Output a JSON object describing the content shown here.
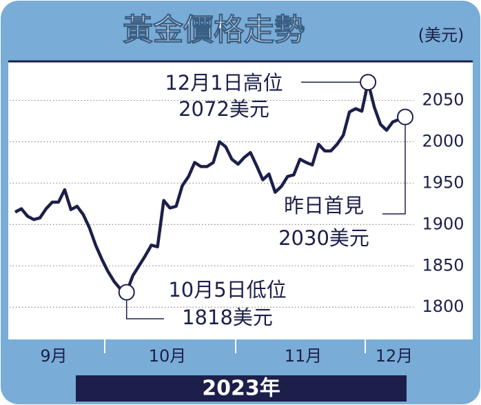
{
  "chart_data": {
    "type": "line",
    "title": "黃金價格走勢",
    "unit_label": "(美元)",
    "year_label": "2023年",
    "months": [
      "9月",
      "10月",
      "11月",
      "12月"
    ],
    "color": "#1c1f4a",
    "ylim": [
      1761,
      2098
    ],
    "yticks": [
      1800,
      1850,
      1900,
      1950,
      2000,
      2050
    ],
    "grid": true,
    "values": [
      1915,
      1919,
      1910,
      1906,
      1908,
      1919,
      1927,
      1927,
      1942,
      1918,
      1922,
      1912,
      1896,
      1875,
      1858,
      1843,
      1831,
      1822,
      1818,
      1838,
      1850,
      1862,
      1875,
      1873,
      1929,
      1920,
      1922,
      1947,
      1958,
      1975,
      1970,
      1970,
      1975,
      2000,
      1994,
      1979,
      1973,
      1981,
      1987,
      1971,
      1954,
      1961,
      1939,
      1946,
      1958,
      1960,
      1979,
      1975,
      1972,
      1997,
      1989,
      1989,
      1997,
      2008,
      2036,
      2040,
      2037,
      2072,
      2042,
      2021,
      2014,
      2024,
      2027,
      2030
    ],
    "annotations": [
      {
        "lines": [
          "12月1日高位",
          "2072美元"
        ],
        "index": 57
      },
      {
        "lines": [
          "昨日首見",
          "2030美元"
        ],
        "index": 63
      },
      {
        "lines": [
          "10月5日低位",
          "1818美元"
        ],
        "index": 18
      }
    ]
  }
}
